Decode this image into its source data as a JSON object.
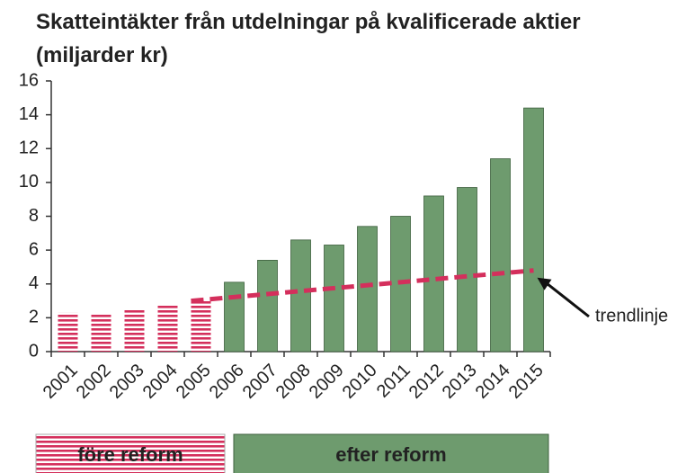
{
  "chart_data": {
    "type": "bar",
    "title": "Skatteintäkter från utdelningar på kvalificerade aktier (miljarder kr)",
    "categories": [
      "2001",
      "2002",
      "2003",
      "2004",
      "2005",
      "2006",
      "2007",
      "2008",
      "2009",
      "2010",
      "2011",
      "2012",
      "2013",
      "2014",
      "2015"
    ],
    "series": [
      {
        "name": "före reform",
        "color": "#d42f5c",
        "values": [
          2.3,
          2.2,
          2.5,
          2.8,
          3.0,
          null,
          null,
          null,
          null,
          null,
          null,
          null,
          null,
          null,
          null
        ]
      },
      {
        "name": "efter reform",
        "color": "#6e9b6e",
        "values": [
          null,
          null,
          null,
          null,
          null,
          4.1,
          5.4,
          6.6,
          6.3,
          7.4,
          8.0,
          9.2,
          9.7,
          11.4,
          14.4
        ]
      }
    ],
    "trendline": {
      "label": "trendlinje",
      "color": "#d42f5c",
      "x": [
        "2005",
        "2015"
      ],
      "values": [
        3.0,
        4.8
      ]
    },
    "ylim": [
      0,
      16
    ],
    "yticks": [
      0,
      2,
      4,
      6,
      8,
      10,
      12,
      14,
      16
    ],
    "grid": false
  }
}
